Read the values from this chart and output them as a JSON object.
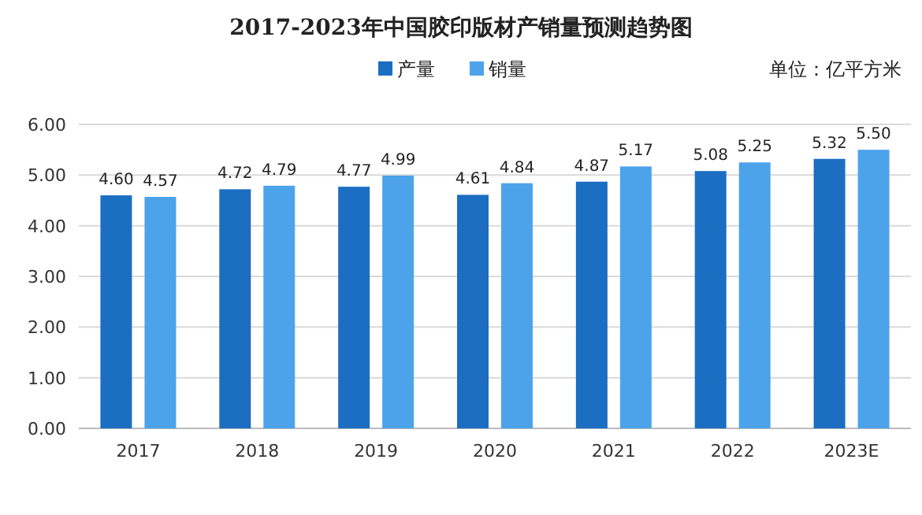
{
  "chart_data": {
    "type": "bar",
    "title": "2017-2023年中国胶印版材产销量预测趋势图",
    "annotations": [
      "单位：亿平方米"
    ],
    "categories": [
      "2017",
      "2018",
      "2019",
      "2020",
      "2021",
      "2022",
      "2023E"
    ],
    "series": [
      {
        "name": "产量",
        "color": "#1b6ec2",
        "values": [
          4.6,
          4.72,
          4.77,
          4.61,
          4.87,
          5.08,
          5.32
        ],
        "value_labels": [
          "4.60",
          "4.72",
          "4.77",
          "4.61",
          "4.87",
          "5.08",
          "5.32"
        ]
      },
      {
        "name": "销量",
        "color": "#4da3ea",
        "values": [
          4.57,
          4.79,
          4.99,
          4.84,
          5.17,
          5.25,
          5.5
        ],
        "value_labels": [
          "4.57",
          "4.79",
          "4.99",
          "4.84",
          "5.17",
          "5.25",
          "5.50"
        ]
      }
    ],
    "ylim": [
      0,
      6
    ],
    "yticks": [
      {
        "value": 0,
        "label": "0.00"
      },
      {
        "value": 1,
        "label": "1.00"
      },
      {
        "value": 2,
        "label": "2.00"
      },
      {
        "value": 3,
        "label": "3.00"
      },
      {
        "value": 4,
        "label": "4.00"
      },
      {
        "value": 5,
        "label": "5.00"
      },
      {
        "value": 6,
        "label": "6.00"
      }
    ],
    "grid": "y",
    "legend": "top"
  }
}
